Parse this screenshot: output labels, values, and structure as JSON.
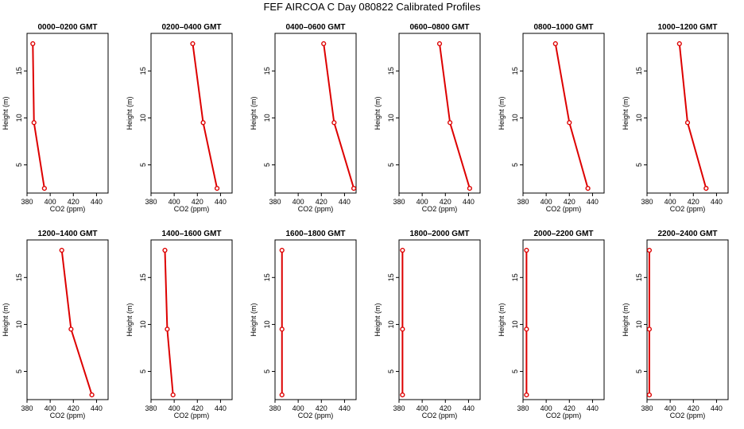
{
  "title": "FEF AIRCOA C  Day 080822  Calibrated Profiles",
  "colors": {
    "profile": "#dd0000",
    "axis": "#000000"
  },
  "chart_data": {
    "type": "line",
    "xlabel": "CO2 (ppm)",
    "ylabel": "Height (m)",
    "xlim": [
      380,
      450
    ],
    "ylim": [
      2,
      19
    ],
    "xticks": [
      380,
      400,
      420,
      440
    ],
    "yticks": [
      5,
      10,
      15
    ],
    "heights": [
      17.9,
      9.5,
      2.5
    ],
    "panels": [
      {
        "title": "0000–0200 GMT",
        "co2": [
          385,
          386,
          395
        ]
      },
      {
        "title": "0200–0400 GMT",
        "co2": [
          416,
          425,
          437
        ]
      },
      {
        "title": "0400–0600 GMT",
        "co2": [
          422,
          431,
          448
        ]
      },
      {
        "title": "0600–0800 GMT",
        "co2": [
          415,
          424,
          441
        ]
      },
      {
        "title": "0800–1000 GMT",
        "co2": [
          408,
          420,
          436
        ]
      },
      {
        "title": "1000–1200 GMT",
        "co2": [
          408,
          415,
          431
        ]
      },
      {
        "title": "1200–1400 GMT",
        "co2": [
          410,
          418,
          436
        ]
      },
      {
        "title": "1400–1600 GMT",
        "co2": [
          392,
          394,
          399
        ]
      },
      {
        "title": "1600–1800 GMT",
        "co2": [
          386,
          386,
          386
        ]
      },
      {
        "title": "1800–2000 GMT",
        "co2": [
          383,
          383,
          383
        ]
      },
      {
        "title": "2000–2200 GMT",
        "co2": [
          383,
          383,
          383
        ]
      },
      {
        "title": "2200–2400 GMT",
        "co2": [
          382,
          382,
          382
        ]
      }
    ]
  }
}
